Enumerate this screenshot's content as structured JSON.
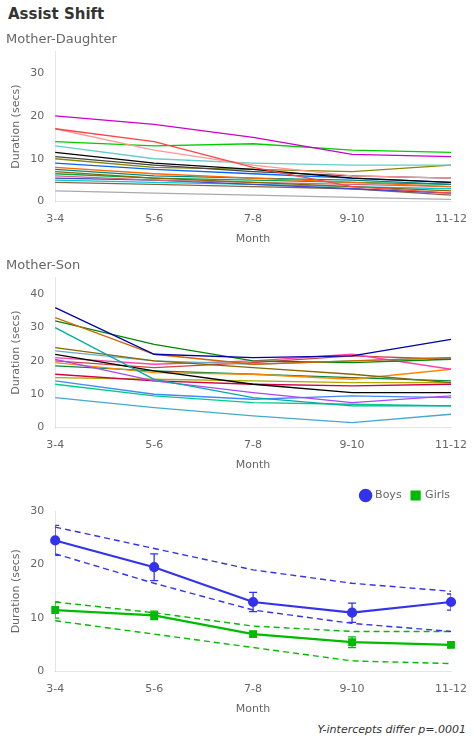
{
  "title": "Assist Shift",
  "chart_data": [
    {
      "type": "line",
      "title": "Mother-Daughter",
      "xlabel": "Month",
      "ylabel": "Duration (secs)",
      "categories": [
        "3-4",
        "5-6",
        "7-8",
        "9-10",
        "11-12"
      ],
      "ylim": [
        0,
        35
      ],
      "yticks": [
        0,
        10,
        20,
        30
      ],
      "grid": false,
      "series": [
        {
          "color": "#CC00CC",
          "values": [
            20.0,
            18.0,
            15.0,
            11.0,
            10.5
          ]
        },
        {
          "color": "#FF4444",
          "values": [
            17.0,
            14.0,
            8.0,
            3.5,
            2.0
          ]
        },
        {
          "color": "#FF9999",
          "values": [
            17.0,
            12.0,
            8.5,
            6.0,
            5.5
          ]
        },
        {
          "color": "#00CC00",
          "values": [
            14.0,
            13.0,
            13.5,
            12.0,
            11.5
          ]
        },
        {
          "color": "#66CCCC",
          "values": [
            13.0,
            10.0,
            9.0,
            8.5,
            8.5
          ]
        },
        {
          "color": "#000000",
          "values": [
            11.5,
            9.0,
            7.5,
            5.5,
            4.5
          ]
        },
        {
          "color": "#444444",
          "values": [
            10.5,
            8.5,
            7.0,
            6.0,
            5.5
          ]
        },
        {
          "color": "#888800",
          "values": [
            10.0,
            8.0,
            7.5,
            7.0,
            8.5
          ]
        },
        {
          "color": "#0066FF",
          "values": [
            9.0,
            7.5,
            6.5,
            5.5,
            4.5
          ]
        },
        {
          "color": "#FF6600",
          "values": [
            8.0,
            6.5,
            5.5,
            4.5,
            3.5
          ]
        },
        {
          "color": "#008888",
          "values": [
            7.5,
            6.0,
            5.5,
            5.0,
            4.0
          ]
        },
        {
          "color": "#886600",
          "values": [
            7.0,
            5.5,
            4.5,
            3.5,
            2.5
          ]
        },
        {
          "color": "#00AA44",
          "values": [
            6.5,
            5.5,
            5.0,
            4.5,
            4.0
          ]
        },
        {
          "color": "#CC6688",
          "values": [
            6.0,
            5.0,
            4.5,
            4.0,
            3.5
          ]
        },
        {
          "color": "#4444CC",
          "values": [
            5.5,
            5.0,
            4.0,
            3.0,
            2.0
          ]
        },
        {
          "color": "#00CCCC",
          "values": [
            5.0,
            4.5,
            4.0,
            3.5,
            3.0
          ]
        },
        {
          "color": "#886644",
          "values": [
            4.5,
            4.0,
            3.5,
            3.0,
            1.5
          ]
        },
        {
          "color": "#AAAAAA",
          "values": [
            2.5,
            2.0,
            1.5,
            1.0,
            0.5
          ]
        }
      ]
    },
    {
      "type": "line",
      "title": "Mother-Son",
      "xlabel": "Month",
      "ylabel": "Duration (secs)",
      "categories": [
        "3-4",
        "5-6",
        "7-8",
        "9-10",
        "11-12"
      ],
      "ylim": [
        0,
        45
      ],
      "yticks": [
        0,
        10,
        20,
        30,
        40
      ],
      "grid": false,
      "series": [
        {
          "color": "#0000AA",
          "values": [
            36.0,
            22.0,
            21.0,
            21.5,
            26.5
          ]
        },
        {
          "color": "#CC6600",
          "values": [
            33.0,
            22.0,
            19.0,
            20.0,
            21.0
          ]
        },
        {
          "color": "#008800",
          "values": [
            32.0,
            25.0,
            20.0,
            19.5,
            20.5
          ]
        },
        {
          "color": "#00AAAA",
          "values": [
            30.0,
            14.5,
            9.0,
            6.5,
            6.5
          ]
        },
        {
          "color": "#886600",
          "values": [
            24.0,
            20.0,
            18.0,
            16.0,
            13.5
          ]
        },
        {
          "color": "#66AACC",
          "values": [
            23.0,
            20.0,
            19.0,
            20.0,
            21.0
          ]
        },
        {
          "color": "#000000",
          "values": [
            22.0,
            17.0,
            13.0,
            10.5,
            10.5
          ]
        },
        {
          "color": "#FF44AA",
          "values": [
            21.0,
            19.0,
            20.0,
            22.0,
            17.5
          ]
        },
        {
          "color": "#AA44FF",
          "values": [
            20.5,
            14.0,
            10.5,
            7.5,
            9.5
          ]
        },
        {
          "color": "#CC4444",
          "values": [
            20.0,
            18.0,
            19.5,
            21.5,
            20.5
          ]
        },
        {
          "color": "#FF8800",
          "values": [
            19.5,
            16.5,
            16.0,
            14.5,
            17.5
          ]
        },
        {
          "color": "#008844",
          "values": [
            18.5,
            17.0,
            16.0,
            15.0,
            14.0
          ]
        },
        {
          "color": "#CC0044",
          "values": [
            16.0,
            14.0,
            13.0,
            12.5,
            13.0
          ]
        },
        {
          "color": "#AAAA00",
          "values": [
            15.0,
            14.5,
            14.0,
            13.5,
            13.5
          ]
        },
        {
          "color": "#4488FF",
          "values": [
            14.0,
            10.0,
            8.5,
            9.5,
            9.0
          ]
        },
        {
          "color": "#00CC88",
          "values": [
            13.0,
            9.5,
            7.5,
            7.0,
            6.5
          ]
        },
        {
          "color": "#44AACC",
          "values": [
            9.0,
            6.0,
            3.5,
            1.5,
            4.0
          ]
        }
      ]
    },
    {
      "type": "line",
      "xlabel": "Month",
      "ylabel": "Duration (secs)",
      "categories": [
        "3-4",
        "5-6",
        "7-8",
        "9-10",
        "11-12"
      ],
      "ylim": [
        0,
        30
      ],
      "yticks": [
        0,
        10,
        20,
        30
      ],
      "grid": false,
      "legend": "upper right",
      "annotation": "Y-intercepts differ p=.0001",
      "series": [
        {
          "color": "#3333EE",
          "line_style": "dashed",
          "values": [
            27.0,
            23.0,
            19.0,
            16.5,
            15.0
          ]
        },
        {
          "color": "#3333EE",
          "line_style": "dashed",
          "values": [
            22.0,
            16.5,
            11.5,
            9.0,
            7.5
          ]
        },
        {
          "color": "#00BB00",
          "line_style": "dashed",
          "values": [
            13.0,
            11.0,
            8.5,
            7.5,
            7.5
          ]
        },
        {
          "color": "#00BB00",
          "line_style": "dashed",
          "values": [
            9.5,
            7.0,
            4.5,
            2.0,
            1.5
          ]
        },
        {
          "name": "Boys",
          "color": "#3333EE",
          "marker": "circle",
          "line_style": "solid",
          "values": [
            24.5,
            19.5,
            13.0,
            11.0,
            13.0
          ],
          "errors": [
            2.8,
            2.5,
            1.8,
            1.8,
            1.5
          ]
        },
        {
          "name": "Girls",
          "color": "#00BB00",
          "marker": "square",
          "line_style": "solid",
          "values": [
            11.5,
            10.5,
            7.0,
            5.5,
            5.0
          ],
          "errors": [
            1.5,
            0.8,
            0.5,
            1.0,
            0.5
          ]
        }
      ]
    }
  ]
}
